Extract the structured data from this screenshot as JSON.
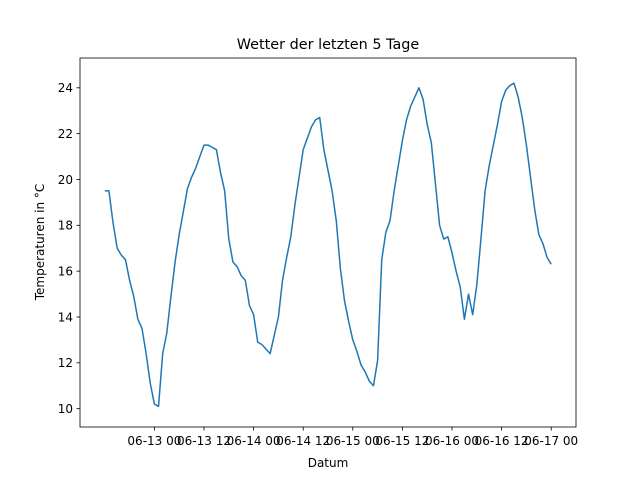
{
  "chart_data": {
    "type": "line",
    "title": "Wetter der letzten 5 Tage",
    "xlabel": "Datum",
    "ylabel": "Temperaturen in °C",
    "x_ticks": [
      "06-13 00",
      "06-13 12",
      "06-14 00",
      "06-14 12",
      "06-15 00",
      "06-15 12",
      "06-16 00",
      "06-16 12",
      "06-17 00"
    ],
    "y_ticks": [
      10,
      12,
      14,
      16,
      18,
      20,
      22,
      24
    ],
    "xlim": [
      "06-12 06",
      "06-17 06"
    ],
    "ylim": [
      9.2,
      25.3
    ],
    "grid": false,
    "line_color": "#1f77b4",
    "series": [
      {
        "x": [
          "06-12 12",
          "06-12 13",
          "06-12 14",
          "06-12 15",
          "06-12 16",
          "06-12 17",
          "06-12 18",
          "06-12 19",
          "06-12 20",
          "06-12 21",
          "06-12 22",
          "06-12 23",
          "06-13 00",
          "06-13 01",
          "06-13 02",
          "06-13 03",
          "06-13 04",
          "06-13 05",
          "06-13 06",
          "06-13 07",
          "06-13 08",
          "06-13 09",
          "06-13 10",
          "06-13 11",
          "06-13 12",
          "06-13 13",
          "06-13 14",
          "06-13 15",
          "06-13 16",
          "06-13 17",
          "06-13 18",
          "06-13 19",
          "06-13 20",
          "06-13 21",
          "06-13 22",
          "06-13 23",
          "06-14 00",
          "06-14 01",
          "06-14 02",
          "06-14 03",
          "06-14 04",
          "06-14 05",
          "06-14 06",
          "06-14 07",
          "06-14 08",
          "06-14 09",
          "06-14 10",
          "06-14 11",
          "06-14 12",
          "06-14 13",
          "06-14 14",
          "06-14 15",
          "06-14 16",
          "06-14 17",
          "06-14 18",
          "06-14 19",
          "06-14 20",
          "06-14 21",
          "06-14 22",
          "06-14 23",
          "06-15 00",
          "06-15 01",
          "06-15 02",
          "06-15 03",
          "06-15 04",
          "06-15 05",
          "06-15 06",
          "06-15 07",
          "06-15 08",
          "06-15 09",
          "06-15 10",
          "06-15 11",
          "06-15 12",
          "06-15 13",
          "06-15 14",
          "06-15 15",
          "06-15 16",
          "06-15 17",
          "06-15 18",
          "06-15 19",
          "06-15 20",
          "06-15 21",
          "06-15 22",
          "06-15 23",
          "06-16 00",
          "06-16 01",
          "06-16 02",
          "06-16 03",
          "06-16 04",
          "06-16 05",
          "06-16 06",
          "06-16 07",
          "06-16 08",
          "06-16 09",
          "06-16 10",
          "06-16 11",
          "06-16 12",
          "06-16 13",
          "06-16 14",
          "06-16 15",
          "06-16 16",
          "06-16 17",
          "06-16 18",
          "06-16 19",
          "06-16 20",
          "06-16 21",
          "06-16 22",
          "06-16 23",
          "06-17 00"
        ],
        "y": [
          19.5,
          19.5,
          18.1,
          17.0,
          16.7,
          16.5,
          15.6,
          14.9,
          13.9,
          13.5,
          12.4,
          11.1,
          10.2,
          10.1,
          12.4,
          13.3,
          14.9,
          16.4,
          17.6,
          18.6,
          19.6,
          20.1,
          20.5,
          21.0,
          21.5,
          21.5,
          21.4,
          21.3,
          20.3,
          19.5,
          17.4,
          16.4,
          16.2,
          15.8,
          15.6,
          14.5,
          14.1,
          12.9,
          12.8,
          12.6,
          12.4,
          13.2,
          14.0,
          15.6,
          16.6,
          17.5,
          18.9,
          20.1,
          21.3,
          21.8,
          22.3,
          22.6,
          22.7,
          21.3,
          20.4,
          19.5,
          18.2,
          16.1,
          14.7,
          13.8,
          13.0,
          12.5,
          11.9,
          11.6,
          11.2,
          11.0,
          12.1,
          16.5,
          17.7,
          18.2,
          19.5,
          20.6,
          21.7,
          22.6,
          23.2,
          23.6,
          24.0,
          23.5,
          22.4,
          21.6,
          19.8,
          18.0,
          17.4,
          17.5,
          16.8,
          16.0,
          15.3,
          13.9,
          15.0,
          14.1,
          15.4,
          17.4,
          19.5,
          20.6,
          21.5,
          22.4,
          23.4,
          23.9,
          24.1,
          24.2,
          23.6,
          22.7,
          21.5,
          20.1,
          18.7,
          17.6,
          17.2,
          16.6,
          16.3
        ]
      }
    ]
  }
}
